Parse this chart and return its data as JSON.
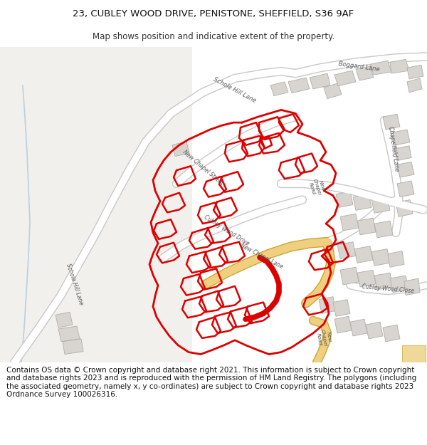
{
  "title_line1": "23, CUBLEY WOOD DRIVE, PENISTONE, SHEFFIELD, S36 9AF",
  "title_line2": "Map shows position and indicative extent of the property.",
  "title_fontsize": 9.5,
  "subtitle_fontsize": 8.5,
  "footer_text": "Contains OS data © Crown copyright and database right 2021. This information is subject to Crown copyright and database rights 2023 and is reproduced with the permission of HM Land Registry. The polygons (including the associated geometry, namely x, y co-ordinates) are subject to Crown copyright and database rights 2023 Ordnance Survey 100026316.",
  "footer_fontsize": 7.5,
  "map_bg": "#ffffff",
  "road_color": "#e8e8e8",
  "road_outline_color": "#c8c8c8",
  "building_fill": "#d8d5d0",
  "building_outline": "#b0aea8",
  "red_color": "#dd0000",
  "water_color": "#c8dce8",
  "highlight_road": "#f0d898",
  "bg_white": "#ffffff"
}
